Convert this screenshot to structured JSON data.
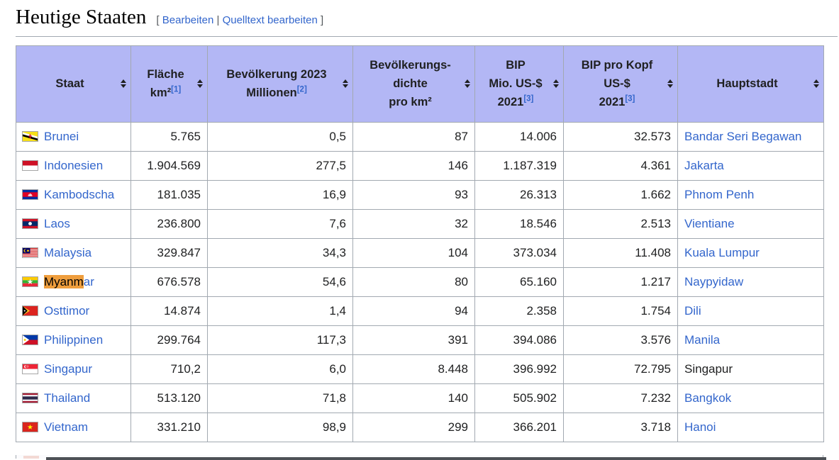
{
  "colors": {
    "header_bg": "#b3b7f5",
    "border": "#a2a9b1",
    "link": "#3366cc",
    "find_highlight": "#ef9e3d",
    "text": "#202122"
  },
  "heading": {
    "title": "Heutige Staaten",
    "bracket_open": "[",
    "edit_label": "Bearbeiten",
    "separator": "|",
    "edit_source_label": "Quelltext bearbeiten",
    "bracket_close": "]"
  },
  "table": {
    "columns": [
      {
        "id": "staat",
        "lines": [
          "Staat"
        ]
      },
      {
        "id": "flaeche",
        "lines": [
          "Fläche",
          "km²"
        ],
        "ref": "[1]",
        "ref_line": 1
      },
      {
        "id": "bevoelkerung",
        "lines": [
          "Bevölkerung 2023",
          "Millionen"
        ],
        "ref": "[2]",
        "ref_line": 1
      },
      {
        "id": "dichte",
        "lines": [
          "Bevölkerungs-",
          "dichte",
          "pro km²"
        ]
      },
      {
        "id": "bip",
        "lines": [
          "BIP",
          "Mio. US-$",
          "2021"
        ],
        "ref": "[3]",
        "ref_line": 2
      },
      {
        "id": "bip_kopf",
        "lines": [
          "BIP pro Kopf",
          "US-$",
          "2021"
        ],
        "ref": "[3]",
        "ref_line": 2
      },
      {
        "id": "hauptstadt",
        "lines": [
          "Hauptstadt"
        ]
      }
    ],
    "rows": [
      {
        "staat": "Brunei",
        "flag": "brunei",
        "flaeche": "5.765",
        "bevoelkerung": "0,5",
        "dichte": "87",
        "bip": "14.006",
        "bip_kopf": "32.573",
        "hauptstadt": "Bandar Seri Begawan",
        "hauptstadt_link": true
      },
      {
        "staat": "Indonesien",
        "flag": "indonesien",
        "flaeche": "1.904.569",
        "bevoelkerung": "277,5",
        "dichte": "146",
        "bip": "1.187.319",
        "bip_kopf": "4.361",
        "hauptstadt": "Jakarta",
        "hauptstadt_link": true
      },
      {
        "staat": "Kambodscha",
        "flag": "kambodscha",
        "flaeche": "181.035",
        "bevoelkerung": "16,9",
        "dichte": "93",
        "bip": "26.313",
        "bip_kopf": "1.662",
        "hauptstadt": "Phnom Penh",
        "hauptstadt_link": true
      },
      {
        "staat": "Laos",
        "flag": "laos",
        "flaeche": "236.800",
        "bevoelkerung": "7,6",
        "dichte": "32",
        "bip": "18.546",
        "bip_kopf": "2.513",
        "hauptstadt": "Vientiane",
        "hauptstadt_link": true
      },
      {
        "staat": "Malaysia",
        "flag": "malaysia",
        "flaeche": "329.847",
        "bevoelkerung": "34,3",
        "dichte": "104",
        "bip": "373.034",
        "bip_kopf": "11.408",
        "hauptstadt": "Kuala Lumpur",
        "hauptstadt_link": true
      },
      {
        "staat": "Myanmar",
        "flag": "myanmar",
        "flaeche": "676.578",
        "bevoelkerung": "54,6",
        "dichte": "80",
        "bip": "65.160",
        "bip_kopf": "1.217",
        "hauptstadt": "Naypyidaw",
        "hauptstadt_link": true,
        "highlight": {
          "match": "Myanm",
          "rest": "ar"
        }
      },
      {
        "staat": "Osttimor",
        "flag": "osttimor",
        "flaeche": "14.874",
        "bevoelkerung": "1,4",
        "dichte": "94",
        "bip": "2.358",
        "bip_kopf": "1.754",
        "hauptstadt": "Dili",
        "hauptstadt_link": true
      },
      {
        "staat": "Philippinen",
        "flag": "philippinen",
        "flaeche": "299.764",
        "bevoelkerung": "117,3",
        "dichte": "391",
        "bip": "394.086",
        "bip_kopf": "3.576",
        "hauptstadt": "Manila",
        "hauptstadt_link": true
      },
      {
        "staat": "Singapur",
        "flag": "singapur",
        "flaeche": "710,2",
        "bevoelkerung": "6,0",
        "dichte": "8.448",
        "bip": "396.992",
        "bip_kopf": "72.795",
        "hauptstadt": "Singapur",
        "hauptstadt_link": false
      },
      {
        "staat": "Thailand",
        "flag": "thailand",
        "flaeche": "513.120",
        "bevoelkerung": "71,8",
        "dichte": "140",
        "bip": "505.902",
        "bip_kopf": "7.232",
        "hauptstadt": "Bangkok",
        "hauptstadt_link": true
      },
      {
        "staat": "Vietnam",
        "flag": "vietnam",
        "flaeche": "331.210",
        "bevoelkerung": "98,9",
        "dichte": "299",
        "bip": "366.201",
        "bip_kopf": "3.718",
        "hauptstadt": "Hanoi",
        "hauptstadt_link": true
      }
    ]
  }
}
